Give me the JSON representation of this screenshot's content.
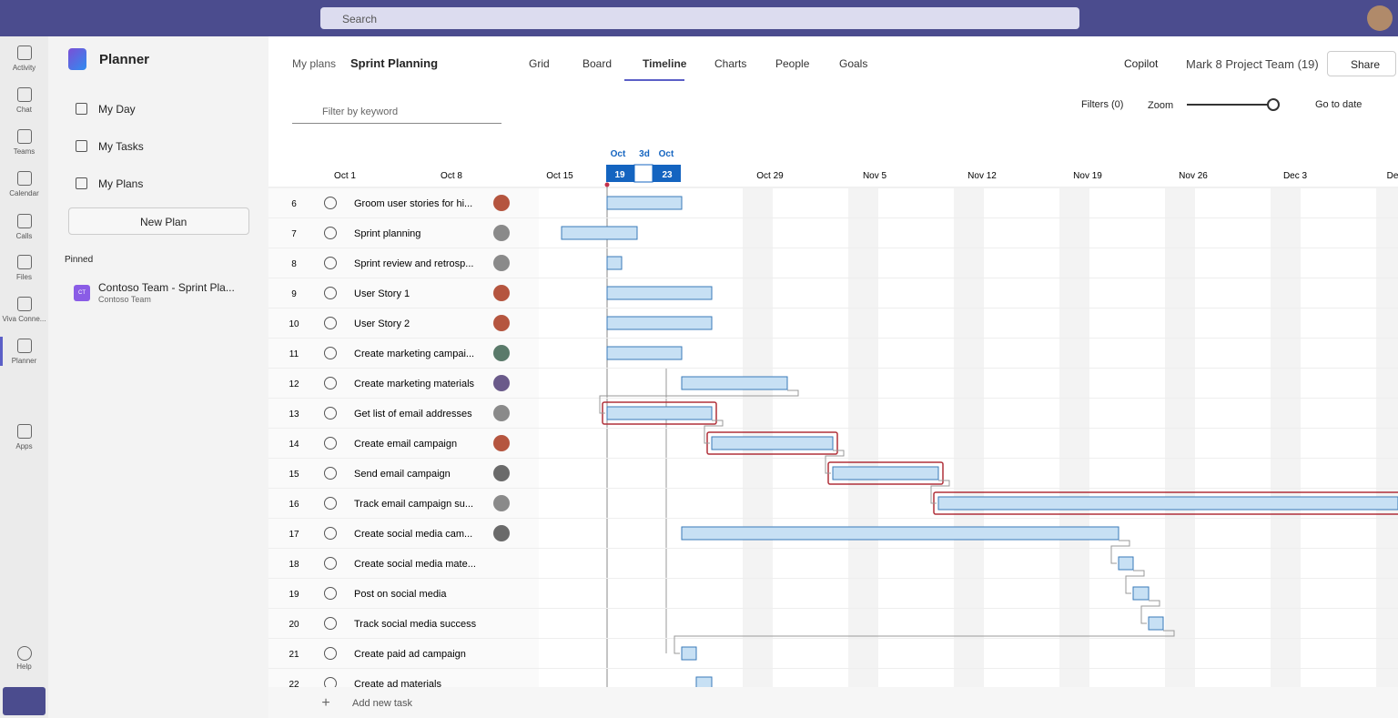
{
  "app_bar": {
    "search": "Search"
  },
  "rail": [
    "Activity",
    "Chat",
    "Teams",
    "Calendar",
    "Calls",
    "Files",
    "Viva Conne...",
    "Planner",
    "Apps"
  ],
  "help": "Help",
  "sidebar": {
    "title": "Planner",
    "nav": [
      "My Day",
      "My Tasks",
      "My Plans"
    ],
    "new_plan": "New Plan",
    "pinned_label": "Pinned",
    "pinned": {
      "icon": "CT",
      "name": "Contoso Team - Sprint Pla...",
      "sub": "Contoso Team"
    }
  },
  "header": {
    "breadcrumb": "My plans",
    "plan": "Sprint Planning",
    "tabs": [
      "Grid",
      "Board",
      "Timeline",
      "Charts",
      "People",
      "Goals"
    ],
    "copilot": "Copilot",
    "team": "Mark 8 Project Team (19)",
    "share": "Share"
  },
  "toolbar": {
    "filter_placeholder": "Filter by keyword",
    "filters": "Filters (0)",
    "zoom": "Zoom",
    "go_to_date": "Go to date"
  },
  "timeline": {
    "selection": {
      "start_month": "Oct",
      "start_day": "19",
      "span": "3d",
      "end_month": "Oct",
      "end_day": "23"
    },
    "dates": [
      "Oct 1",
      "Oct 8",
      "Oct 15",
      "Oct 29",
      "Nov 5",
      "Nov 12",
      "Nov 19",
      "Nov 26",
      "Dec 3",
      "De"
    ]
  },
  "tasks": [
    {
      "id": "6",
      "name": "Groom user stories for hi..."
    },
    {
      "id": "7",
      "name": "Sprint planning"
    },
    {
      "id": "8",
      "name": "Sprint review and retrosp..."
    },
    {
      "id": "9",
      "name": "User Story 1"
    },
    {
      "id": "10",
      "name": "User Story 2"
    },
    {
      "id": "11",
      "name": "Create marketing campai..."
    },
    {
      "id": "12",
      "name": "Create marketing materials"
    },
    {
      "id": "13",
      "name": "Get list of email addresses"
    },
    {
      "id": "14",
      "name": "Create email campaign"
    },
    {
      "id": "15",
      "name": "Send email campaign"
    },
    {
      "id": "16",
      "name": "Track email campaign su..."
    },
    {
      "id": "17",
      "name": "Create social media cam..."
    },
    {
      "id": "18",
      "name": "Create social media mate..."
    },
    {
      "id": "19",
      "name": "Post on social media"
    },
    {
      "id": "20",
      "name": "Track social media success"
    },
    {
      "id": "21",
      "name": "Create paid ad campaign"
    },
    {
      "id": "22",
      "name": "Create ad materials"
    }
  ],
  "add_task": "Add new task"
}
